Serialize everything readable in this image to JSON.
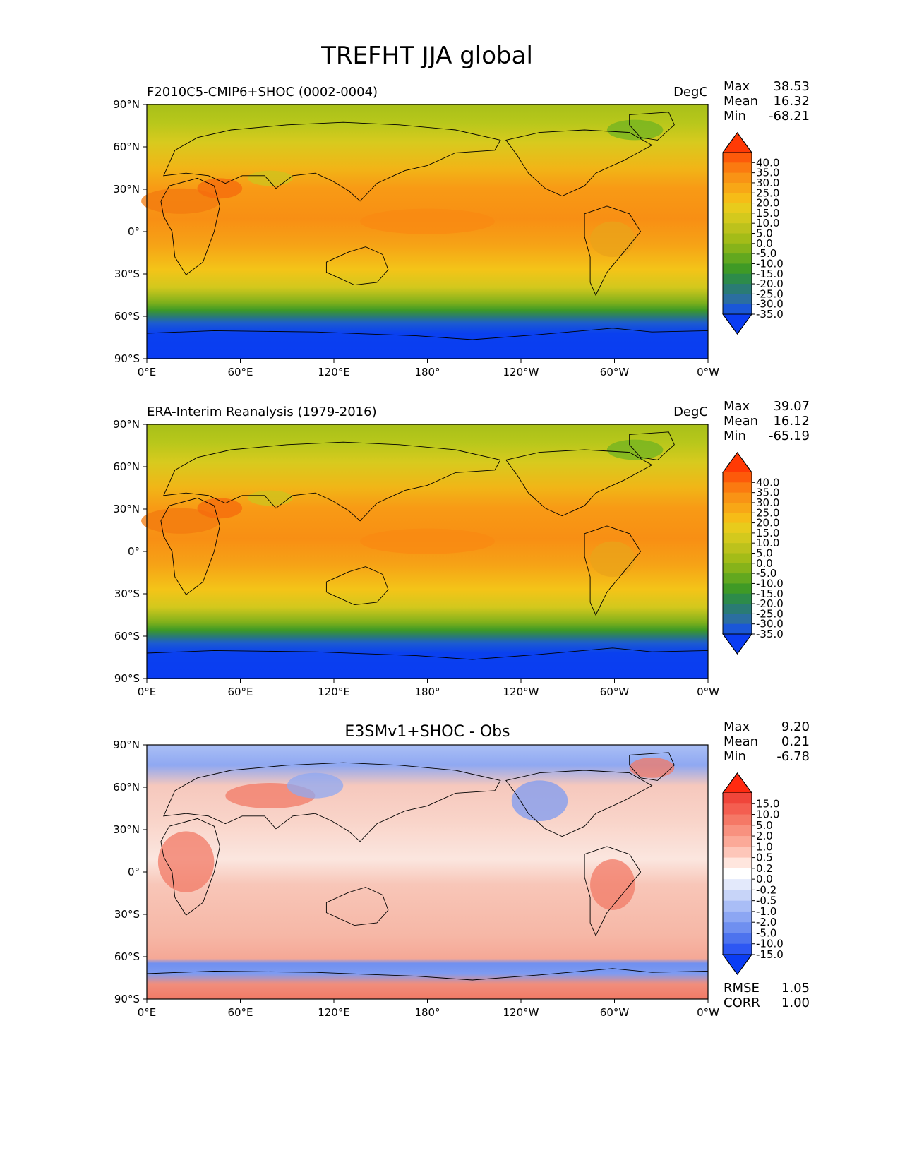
{
  "figure_title": "TREFHT JJA global",
  "x_ticks": [
    "0°E",
    "60°E",
    "120°E",
    "180°",
    "120°W",
    "60°W",
    "0°W"
  ],
  "y_ticks": [
    "90°N",
    "60°N",
    "30°N",
    "0°",
    "30°S",
    "60°S",
    "90°S"
  ],
  "stat_labels": {
    "max": "Max",
    "mean": "Mean",
    "min": "Min",
    "rmse": "RMSE",
    "corr": "CORR"
  },
  "panels": [
    {
      "title_left": "F2010C5-CMIP6+SHOC (0002-0004)",
      "title_center": "",
      "units": "DegC",
      "stats": {
        "max": "38.53",
        "mean": "16.32",
        "min": "-68.21"
      },
      "colorbar_labels": [
        "40.0",
        "35.0",
        "30.0",
        "25.0",
        "20.0",
        "15.0",
        "10.0",
        "5.0",
        "0.0",
        "-5.0",
        "-10.0",
        "-15.0",
        "-20.0",
        "-25.0",
        "-30.0",
        "-35.0"
      ],
      "colorbar_colors": [
        "#ff3a05",
        "#fd5a0a",
        "#fb7a10",
        "#f99315",
        "#f8a716",
        "#f6bc17",
        "#e8cb1c",
        "#d3c91d",
        "#bcc21c",
        "#a3bc18",
        "#86b31a",
        "#62a81f",
        "#3f9a26",
        "#2d8b4a",
        "#2a7b74",
        "#2b6ea0",
        "#1a57d8",
        "#0a3cf2"
      ]
    },
    {
      "title_left": "ERA-Interim Reanalysis (1979-2016)",
      "title_center": "",
      "units": "DegC",
      "stats": {
        "max": "39.07",
        "mean": "16.12",
        "min": "-65.19"
      },
      "colorbar_labels": [
        "40.0",
        "35.0",
        "30.0",
        "25.0",
        "20.0",
        "15.0",
        "10.0",
        "5.0",
        "0.0",
        "-5.0",
        "-10.0",
        "-15.0",
        "-20.0",
        "-25.0",
        "-30.0",
        "-35.0"
      ],
      "colorbar_colors": [
        "#ff3a05",
        "#fd5a0a",
        "#fb7a10",
        "#f99315",
        "#f8a716",
        "#f6bc17",
        "#e8cb1c",
        "#d3c91d",
        "#bcc21c",
        "#a3bc18",
        "#86b31a",
        "#62a81f",
        "#3f9a26",
        "#2d8b4a",
        "#2a7b74",
        "#2b6ea0",
        "#1a57d8",
        "#0a3cf2"
      ]
    },
    {
      "title_left": "",
      "title_center": "E3SMv1+SHOC - Obs",
      "units": "",
      "stats": {
        "max": "9.20",
        "mean": "0.21",
        "min": "-6.78",
        "rmse": "1.05",
        "corr": "1.00"
      },
      "colorbar_labels": [
        "15.0",
        "10.0",
        "5.0",
        "2.0",
        "1.0",
        "0.5",
        "0.2",
        "0.0",
        "-0.2",
        "-0.5",
        "-1.0",
        "-2.0",
        "-5.0",
        "-10.0",
        "-15.0"
      ],
      "colorbar_colors": [
        "#ff2a10",
        "#f0453a",
        "#f45e50",
        "#f57866",
        "#f8917f",
        "#fba998",
        "#fdc6b9",
        "#ffe6de",
        "#ffffff",
        "#e3e9fb",
        "#c7d4f8",
        "#a9bdf6",
        "#8ca6f3",
        "#6f8ff0",
        "#4d73ee",
        "#2d57f3",
        "#0a3cf4"
      ]
    }
  ]
}
